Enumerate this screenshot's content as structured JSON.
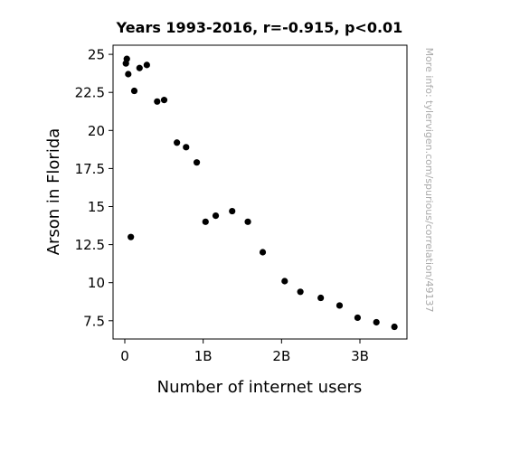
{
  "chart_data": {
    "type": "scatter",
    "title": "Years 1993-2016, r=-0.915, p<0.01",
    "xlabel": "Number of internet users",
    "ylabel": "Arson in Florida",
    "side_note": "More info: tylervigen.com/spurious/correlation/49137",
    "xlim": [
      -0.15,
      3.6
    ],
    "ylim": [
      6.3,
      25.6
    ],
    "x_ticks": [
      {
        "value": 0,
        "label": "0"
      },
      {
        "value": 1,
        "label": "1B"
      },
      {
        "value": 2,
        "label": "2B"
      },
      {
        "value": 3,
        "label": "3B"
      }
    ],
    "y_ticks": [
      {
        "value": 7.5,
        "label": "7.5"
      },
      {
        "value": 10,
        "label": "10"
      },
      {
        "value": 12.5,
        "label": "12.5"
      },
      {
        "value": 15,
        "label": "15"
      },
      {
        "value": 17.5,
        "label": "17.5"
      },
      {
        "value": 20,
        "label": "20"
      },
      {
        "value": 22.5,
        "label": "22.5"
      },
      {
        "value": 25,
        "label": "25"
      }
    ],
    "grid": false,
    "marker_color": "#000000",
    "points": [
      {
        "x": 0.014,
        "y": 24.4
      },
      {
        "x": 0.026,
        "y": 24.7
      },
      {
        "x": 0.044,
        "y": 23.7
      },
      {
        "x": 0.077,
        "y": 13.0
      },
      {
        "x": 0.121,
        "y": 22.6
      },
      {
        "x": 0.188,
        "y": 24.1
      },
      {
        "x": 0.281,
        "y": 24.3
      },
      {
        "x": 0.413,
        "y": 21.9
      },
      {
        "x": 0.502,
        "y": 22.0
      },
      {
        "x": 0.665,
        "y": 19.2
      },
      {
        "x": 0.782,
        "y": 18.9
      },
      {
        "x": 0.918,
        "y": 17.9
      },
      {
        "x": 1.03,
        "y": 14.0
      },
      {
        "x": 1.16,
        "y": 14.4
      },
      {
        "x": 1.37,
        "y": 14.7
      },
      {
        "x": 1.57,
        "y": 14.0
      },
      {
        "x": 1.76,
        "y": 12.0
      },
      {
        "x": 2.04,
        "y": 10.1
      },
      {
        "x": 2.24,
        "y": 9.4
      },
      {
        "x": 2.5,
        "y": 9.0
      },
      {
        "x": 2.74,
        "y": 8.5
      },
      {
        "x": 2.97,
        "y": 7.7
      },
      {
        "x": 3.21,
        "y": 7.4
      },
      {
        "x": 3.44,
        "y": 7.1
      }
    ]
  }
}
